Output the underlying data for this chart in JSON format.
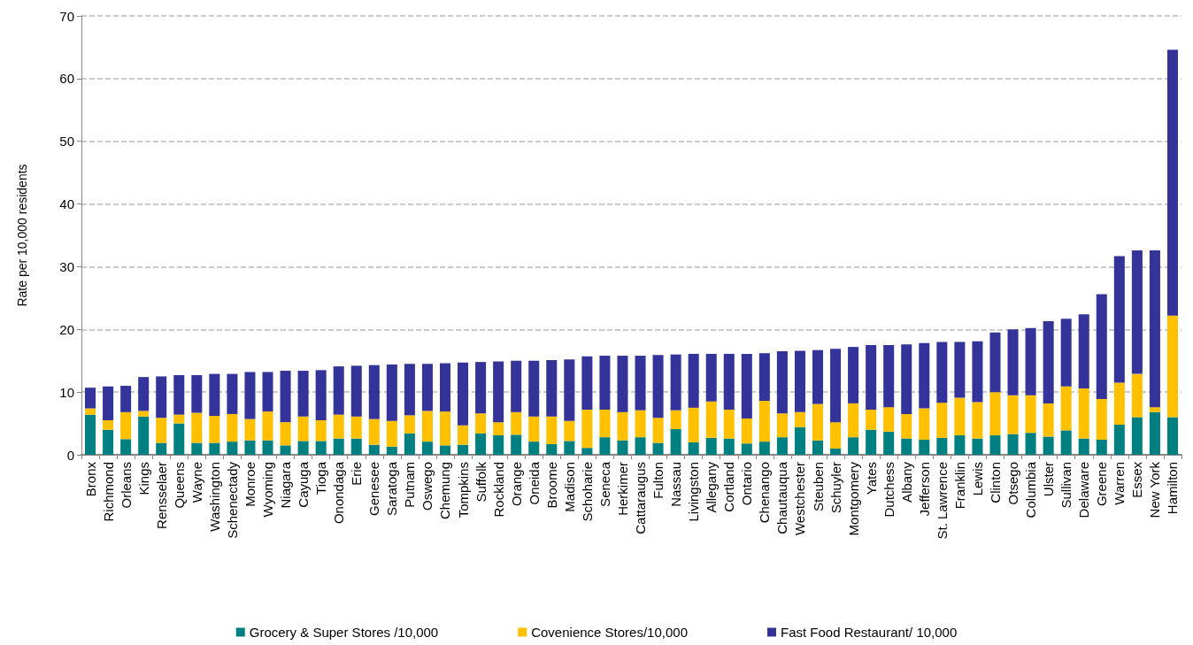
{
  "chart_data": {
    "type": "bar",
    "stacked": true,
    "ylabel": "Rate per 10,000 residents",
    "categories": [
      "Bronx",
      "Richmond",
      "Orleans",
      "Kings",
      "Rensselaer",
      "Queens",
      "Wayne",
      "Washington",
      "Schenectady",
      "Monroe",
      "Wyoming",
      "Niagara",
      "Cayuga",
      "Tioga",
      "Onondaga",
      "Erie",
      "Genesee",
      "Saratoga",
      "Putnam",
      "Oswego",
      "Chemung",
      "Tompkins",
      "Suffolk",
      "Rockland",
      "Orange",
      "Oneida",
      "Broome",
      "Madison",
      "Schoharie",
      "Seneca",
      "Herkimer",
      "Cattaraugus",
      "Fulton",
      "Nassau",
      "Livingston",
      "Allegany",
      "Cortland",
      "Ontario",
      "Chenango",
      "Chautauqua",
      "Westchester",
      "Steuben",
      "Schuyler",
      "Montgomery",
      "Yates",
      "Dutchess",
      "Albany",
      "Jefferson",
      "St. Lawrence",
      "Franklin",
      "Lewis",
      "Clinton",
      "Otsego",
      "Columbia",
      "Ulster",
      "Sullivan",
      "Delaware",
      "Greene",
      "Warren",
      "Essex",
      "New York",
      "Hamilton"
    ],
    "series": [
      {
        "name": "Grocery & Super Stores /10,000",
        "color": "#008080",
        "values": [
          6.4,
          4.0,
          2.5,
          6.1,
          1.9,
          5.0,
          1.9,
          1.9,
          2.1,
          2.3,
          2.3,
          1.5,
          2.2,
          2.2,
          2.6,
          2.6,
          1.6,
          1.3,
          3.4,
          2.1,
          1.5,
          1.6,
          3.4,
          3.1,
          3.2,
          2.1,
          1.7,
          2.2,
          1.1,
          2.8,
          2.3,
          2.8,
          1.9,
          4.1,
          2.0,
          2.7,
          2.6,
          1.8,
          2.1,
          2.8,
          4.4,
          2.3,
          1.0,
          2.8,
          4.0,
          3.7,
          2.6,
          2.4,
          2.7,
          3.1,
          2.6,
          3.1,
          3.3,
          3.5,
          2.9,
          3.9,
          2.6,
          2.4,
          4.8,
          6.0,
          6.8,
          6.0
        ]
      },
      {
        "name": "Covenience Stores/10,000",
        "color": "#ffc000",
        "values": [
          1.0,
          1.5,
          4.3,
          0.9,
          4.0,
          1.4,
          4.8,
          4.3,
          4.4,
          3.4,
          4.6,
          3.7,
          3.9,
          3.3,
          3.8,
          3.5,
          4.1,
          4.1,
          2.9,
          4.9,
          5.4,
          3.1,
          3.2,
          2.1,
          3.6,
          4.0,
          4.4,
          3.2,
          6.1,
          4.4,
          4.5,
          4.3,
          4.0,
          3.0,
          5.5,
          5.8,
          4.6,
          4.0,
          6.5,
          3.8,
          2.4,
          5.8,
          4.2,
          5.4,
          3.2,
          3.9,
          3.9,
          5.0,
          5.6,
          6.0,
          5.8,
          6.9,
          6.2,
          6.0,
          5.3,
          7.0,
          8.0,
          6.5,
          6.7,
          6.9,
          0.8,
          16.2
        ]
      },
      {
        "name": "Fast Food Restaurant/ 10,000",
        "color": "#333399",
        "values": [
          3.3,
          5.4,
          4.2,
          5.4,
          6.6,
          6.3,
          6.0,
          6.7,
          6.4,
          7.5,
          6.3,
          8.2,
          7.3,
          8.0,
          7.7,
          8.1,
          8.6,
          9.0,
          8.2,
          7.5,
          7.7,
          10.0,
          8.2,
          9.7,
          8.2,
          8.9,
          9.0,
          9.8,
          8.5,
          8.6,
          9.0,
          8.7,
          10.0,
          8.9,
          8.6,
          7.6,
          8.9,
          10.3,
          7.6,
          9.9,
          9.8,
          8.6,
          11.7,
          9.0,
          10.3,
          9.9,
          11.1,
          10.4,
          9.7,
          8.9,
          9.7,
          9.5,
          10.5,
          10.7,
          13.1,
          10.8,
          11.8,
          16.7,
          20.2,
          19.7,
          25.0,
          42.4
        ]
      }
    ],
    "ylim": [
      0,
      70
    ],
    "yticks": [
      0,
      10,
      20,
      30,
      40,
      50,
      60,
      70
    ],
    "grid": "y",
    "legend": "bottom"
  }
}
